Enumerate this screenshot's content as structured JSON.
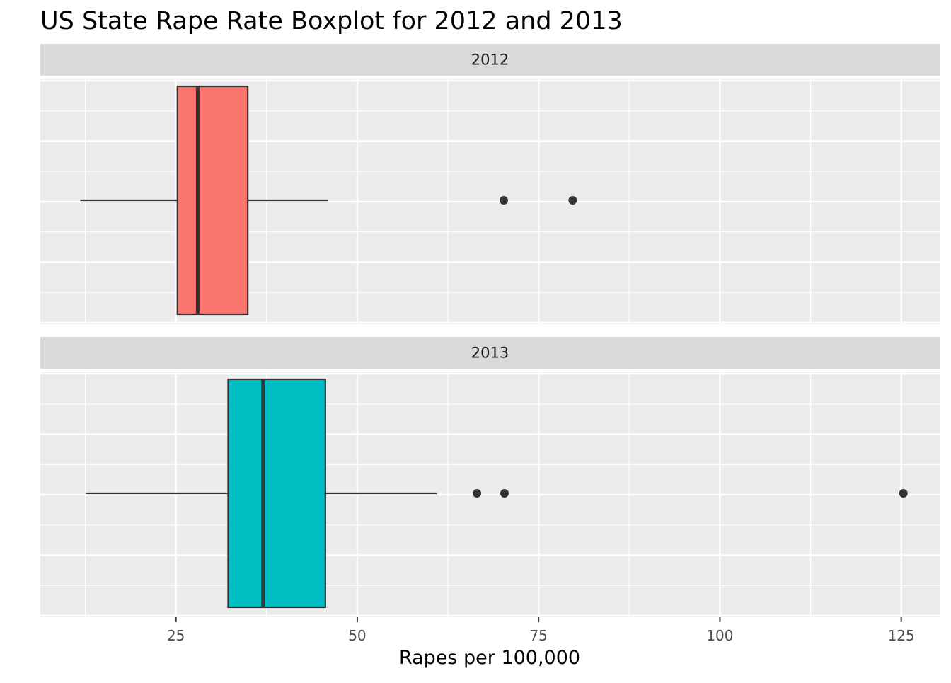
{
  "chart_data": {
    "type": "boxplot",
    "title": "US State Rape Rate Boxplot for 2012 and 2013",
    "xlabel": "Rapes per 100,000",
    "ylabel": "",
    "xlim": [
      6.3,
      130.3
    ],
    "x_ticks": [
      25,
      50,
      75,
      100,
      125
    ],
    "x_tick_labels": [
      "25",
      "50",
      "75",
      "100",
      "125"
    ],
    "grid": true,
    "legend": "none",
    "facets": [
      {
        "label": "2012",
        "color": "#F8766D",
        "box": {
          "whisker_low": 11.8,
          "q1": 25.2,
          "median": 28.0,
          "q3": 34.9,
          "whisker_high": 46.0
        },
        "outliers": [
          70.2,
          79.7
        ]
      },
      {
        "label": "2013",
        "color": "#00BFC4",
        "box": {
          "whisker_low": 12.6,
          "q1": 32.2,
          "median": 37.0,
          "q3": 45.6,
          "whisker_high": 61.0
        },
        "outliers": [
          66.5,
          70.3,
          125.3
        ]
      }
    ]
  },
  "colors": {
    "panel_background": "#EBEBEB",
    "strip_background": "#D9D9D9",
    "grid_major": "#FFFFFF",
    "box_outline": "#333333"
  }
}
